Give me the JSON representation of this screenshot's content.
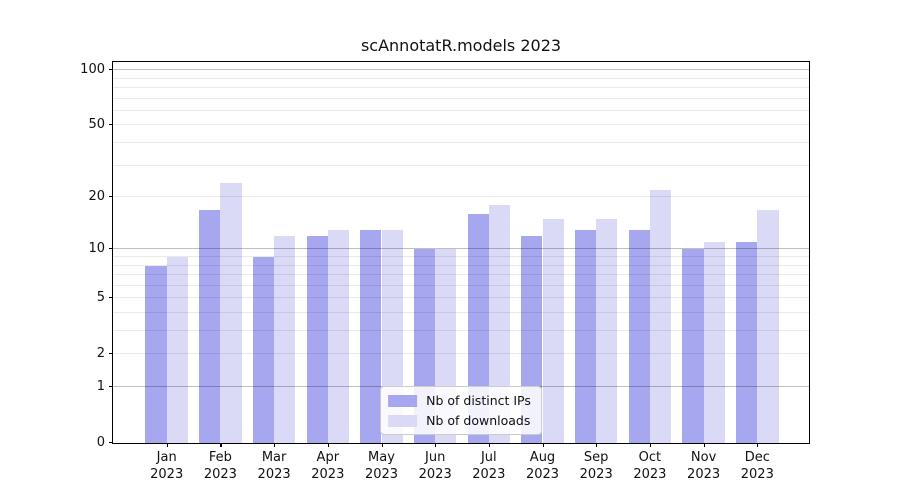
{
  "figure": {
    "background": "#ffffff"
  },
  "chart_data": {
    "type": "bar",
    "title": "scAnnotatR.models 2023",
    "x_labels": [
      {
        "month": "Jan",
        "year": "2023"
      },
      {
        "month": "Feb",
        "year": "2023"
      },
      {
        "month": "Mar",
        "year": "2023"
      },
      {
        "month": "Apr",
        "year": "2023"
      },
      {
        "month": "May",
        "year": "2023"
      },
      {
        "month": "Jun",
        "year": "2023"
      },
      {
        "month": "Jul",
        "year": "2023"
      },
      {
        "month": "Aug",
        "year": "2023"
      },
      {
        "month": "Sep",
        "year": "2023"
      },
      {
        "month": "Oct",
        "year": "2023"
      },
      {
        "month": "Nov",
        "year": "2023"
      },
      {
        "month": "Dec",
        "year": "2023"
      }
    ],
    "series": [
      {
        "name": "Nb of distinct IPs",
        "color": "#a7a7f0",
        "values": [
          8,
          17,
          9,
          12,
          13,
          10,
          16,
          12,
          13,
          13,
          10,
          11
        ]
      },
      {
        "name": "Nb of downloads",
        "color": "#dadaf7",
        "values": [
          9,
          24,
          12,
          13,
          13,
          10,
          18,
          15,
          15,
          22,
          11,
          17
        ]
      }
    ],
    "yscale": "log10(value+1)",
    "ylim": [
      0,
      114
    ],
    "yticks": [
      100,
      50,
      20,
      10,
      5,
      2,
      1,
      0
    ],
    "ytick_labels": [
      "100",
      "50",
      "20",
      "10",
      "5",
      "2",
      "1",
      "0"
    ],
    "major_gridline_values": [
      1,
      10,
      100
    ],
    "minor_gridline_values": [
      2,
      3,
      4,
      5,
      6,
      7,
      8,
      9,
      20,
      30,
      40,
      50,
      60,
      70,
      80,
      90
    ],
    "grid": true,
    "legend_position": "lower center"
  }
}
